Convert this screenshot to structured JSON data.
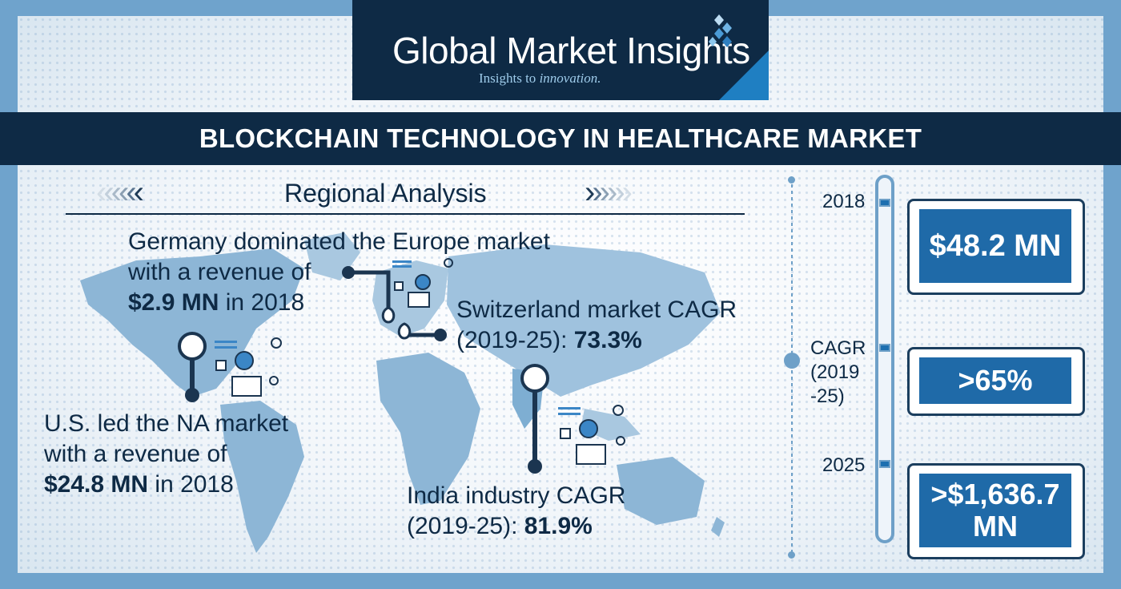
{
  "logo": {
    "name": "Global Market Insights",
    "tagline_prefix": "Insights to ",
    "tagline_italic": "innovation."
  },
  "title": "BLOCKCHAIN TECHNOLOGY IN HEALTHCARE MARKET",
  "regional": {
    "heading": "Regional Analysis",
    "germany": {
      "line1": "Germany dominated the Europe market",
      "line2": "with a revenue of",
      "value": "$2.9 MN",
      "suffix": " in 2018"
    },
    "us": {
      "line1": "U.S. led the NA market",
      "line2": "with a revenue of",
      "value": "$24.8 MN",
      "suffix": " in 2018"
    },
    "switzerland": {
      "line1": "Switzerland market CAGR",
      "line2_prefix": "(2019-25): ",
      "value": "73.3%"
    },
    "india": {
      "line1": "India industry CAGR",
      "line2_prefix": "(2019-25): ",
      "value": "81.9%"
    }
  },
  "timeline": {
    "year_start": "2018",
    "cagr_label": "CAGR (2019 -25)",
    "year_end": "2025",
    "value_2018": "$48.2 MN",
    "value_cagr": ">65%",
    "value_2025": ">$1,636.7 MN"
  },
  "colors": {
    "navy": "#0e2a45",
    "accent_blue": "#1f6aa8",
    "light_blue": "#6ea0c8"
  }
}
